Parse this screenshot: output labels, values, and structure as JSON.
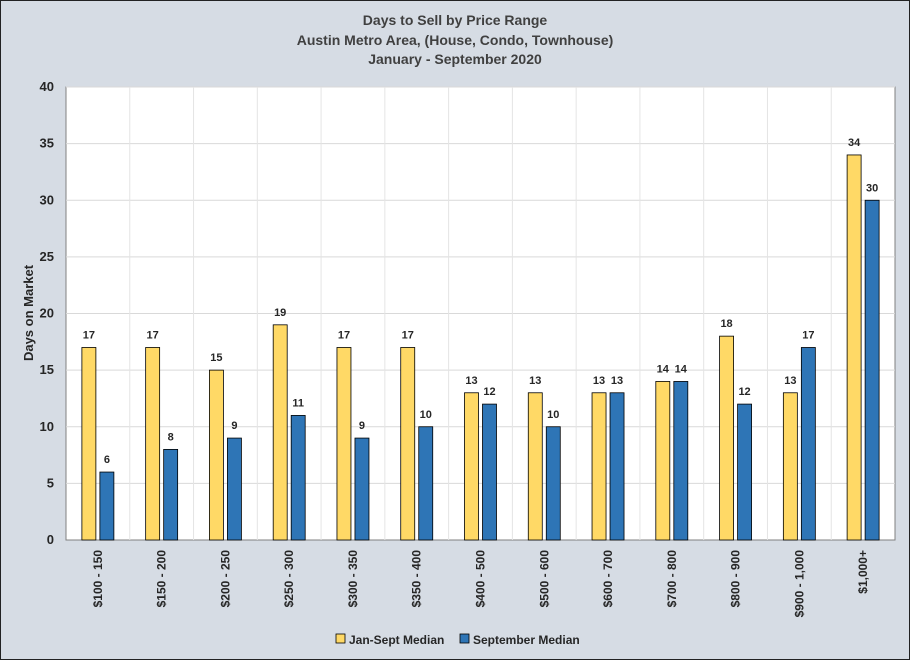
{
  "chart_data": {
    "type": "bar",
    "title": [
      "Days to Sell by Price Range",
      "Austin Metro Area, (House, Condo, Townhouse)",
      "January - September 2020"
    ],
    "ylabel": "Days on Market",
    "xlabel": "",
    "ylim": [
      0,
      40
    ],
    "yticks": [
      0,
      5,
      10,
      15,
      20,
      25,
      30,
      35,
      40
    ],
    "grid": true,
    "legend_position": "bottom",
    "categories": [
      "$100 - 150",
      "$150 - 200",
      "$200 - 250",
      "$250 - 300",
      "$300 - 350",
      "$350 - 400",
      "$400 - 500",
      "$500 - 600",
      "$600 - 700",
      "$700 - 800",
      "$800 - 900",
      "$900 - 1,000",
      "$1,000+"
    ],
    "series": [
      {
        "name": "Jan-Sept Median",
        "color": "#ffd966",
        "values": [
          17,
          17,
          15,
          19,
          17,
          17,
          13,
          13,
          13,
          14,
          18,
          13,
          34
        ]
      },
      {
        "name": "September Median",
        "color": "#2e75b6",
        "values": [
          6,
          8,
          9,
          11,
          9,
          10,
          12,
          10,
          13,
          14,
          12,
          17,
          30
        ]
      }
    ]
  }
}
